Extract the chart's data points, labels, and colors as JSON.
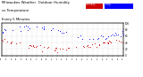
{
  "title_line1": "Milwaukee Weather  Outdoor Humidity",
  "title_line2": "vs Temperature",
  "title_line3": "Every 5 Minutes",
  "title_fontsize": 2.8,
  "bg_color": "#ffffff",
  "blue_color": "#0000ff",
  "red_color": "#cc0000",
  "grid_color": "#bbbbbb",
  "dot_size": 0.4,
  "num_points": 288,
  "ylim": [
    0,
    100
  ],
  "xlim": [
    0,
    287
  ],
  "yticks": [
    0,
    20,
    40,
    60,
    80,
    100
  ],
  "ytick_labels": [
    "0",
    "20",
    "40",
    "60",
    "80",
    "100"
  ],
  "seed": 7,
  "humidity_base": 72,
  "humidity_amp": 18,
  "temp_base": 32,
  "temp_amp": 12
}
